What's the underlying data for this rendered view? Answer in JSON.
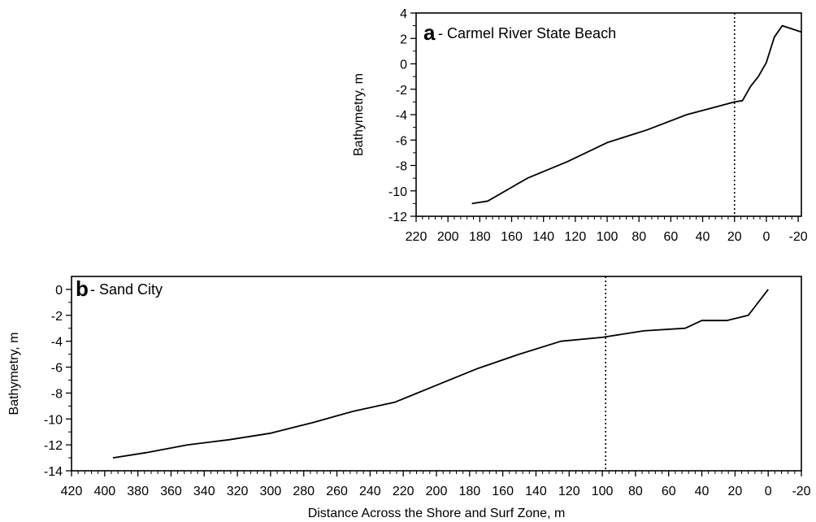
{
  "chart_data": [
    {
      "type": "line",
      "panel_letter": "a",
      "title": "- Carmel River State Beach",
      "xlabel": "",
      "ylabel": "Bathymetry, m",
      "xlim": [
        220,
        -22
      ],
      "ylim": [
        -12,
        4
      ],
      "x_ticks": [
        220,
        200,
        180,
        160,
        140,
        120,
        100,
        80,
        60,
        40,
        20,
        0,
        -20
      ],
      "x_tick_labels": [
        "220",
        "200",
        "180",
        "160",
        "140",
        "120",
        "100",
        "80",
        "60",
        "40",
        "20",
        "0",
        "-20"
      ],
      "y_ticks": [
        4,
        2,
        0,
        -2,
        -4,
        -6,
        -8,
        -10,
        -12
      ],
      "y_tick_labels": [
        "4",
        "2",
        "0",
        "-2",
        "-4",
        "-6",
        "-8",
        "-10",
        "-12"
      ],
      "vline_x": 20,
      "series": [
        {
          "x": [
            185,
            175,
            150,
            125,
            100,
            75,
            50,
            20,
            15,
            10,
            5,
            0,
            -5,
            -10,
            -22
          ],
          "y": [
            -11.0,
            -10.8,
            -9.0,
            -7.7,
            -6.2,
            -5.2,
            -4.0,
            -3.0,
            -2.9,
            -1.8,
            -1.0,
            0.1,
            2.1,
            3.0,
            2.5
          ]
        }
      ]
    },
    {
      "type": "line",
      "panel_letter": "b",
      "title": "- Sand City",
      "xlabel": "Distance Across the Shore and Surf Zone, m",
      "ylabel": "Bathymetry, m",
      "xlim": [
        420,
        -20
      ],
      "ylim": [
        -14,
        1
      ],
      "x_ticks": [
        420,
        400,
        380,
        360,
        340,
        320,
        300,
        280,
        260,
        240,
        220,
        200,
        180,
        160,
        140,
        120,
        100,
        80,
        60,
        40,
        20,
        0,
        -20
      ],
      "x_tick_labels": [
        "420",
        "400",
        "380",
        "360",
        "340",
        "320",
        "300",
        "280",
        "260",
        "240",
        "220",
        "200",
        "180",
        "160",
        "140",
        "120",
        "100",
        "80",
        "60",
        "40",
        "20",
        "0",
        "-20"
      ],
      "y_ticks": [
        0,
        -2,
        -4,
        -6,
        -8,
        -10,
        -12,
        -14
      ],
      "y_tick_labels": [
        "0",
        "-2",
        "-4",
        "-6",
        "-8",
        "-10",
        "-12",
        "-14"
      ],
      "vline_x": 98,
      "series": [
        {
          "x": [
            395,
            375,
            350,
            325,
            300,
            275,
            250,
            225,
            200,
            175,
            150,
            125,
            100,
            75,
            50,
            40,
            25,
            12,
            0
          ],
          "y": [
            -13.0,
            -12.6,
            -12.0,
            -11.6,
            -11.1,
            -10.3,
            -9.4,
            -8.7,
            -7.4,
            -6.1,
            -5.0,
            -4.0,
            -3.7,
            -3.2,
            -3.0,
            -2.4,
            -2.4,
            -2.0,
            0.0
          ]
        }
      ]
    }
  ]
}
